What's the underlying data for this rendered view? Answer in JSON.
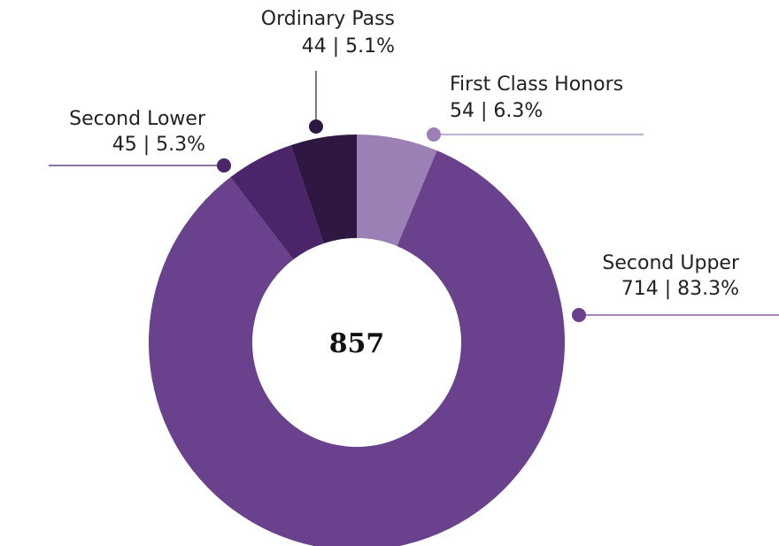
{
  "chart_data": {
    "type": "donut",
    "categories": [
      "First Class Honors",
      "Second Upper",
      "Second Lower",
      "Ordinary Pass"
    ],
    "values": [
      54,
      714,
      45,
      44
    ],
    "value_labels": [
      "54 | 6.3%",
      "714 | 83.3%",
      "45 | 5.3%",
      "44 | 5.1%"
    ],
    "colors": [
      "#9b80b6",
      "#6a418c",
      "#4b2569",
      "#2e1741"
    ],
    "total": 857
  }
}
